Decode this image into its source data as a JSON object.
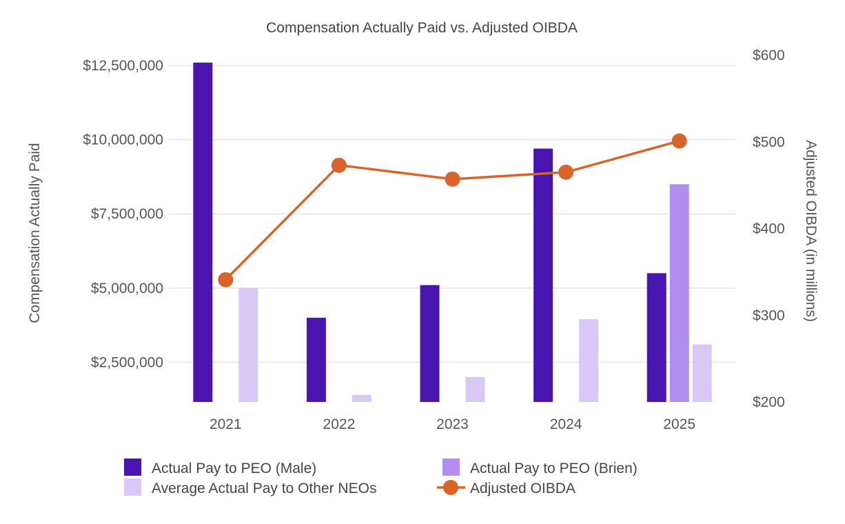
{
  "chart_data": {
    "type": "bar",
    "title": "Compensation Actually Paid vs. Adjusted OIBDA",
    "categories": [
      "2021",
      "2022",
      "2023",
      "2024",
      "2025"
    ],
    "ylabel": "Compensation Actually Paid",
    "y2label": "Adjusted OIBDA (in millions)",
    "ylim": [
      1160000,
      12850000
    ],
    "y2lim": [
      200,
      600
    ],
    "yticks": [
      "$2,500,000",
      "$5,000,000",
      "$7,500,000",
      "$10,000,000",
      "$12,500,000"
    ],
    "ytick_values": [
      2500000,
      5000000,
      7500000,
      10000000,
      12500000
    ],
    "y2ticks": [
      "$200",
      "$300",
      "$400",
      "$500",
      "$600"
    ],
    "y2tick_values": [
      200,
      300,
      400,
      500,
      600
    ],
    "grid": true,
    "legend_position": "bottom",
    "series": [
      {
        "name": "Actual Pay to PEO (Male)",
        "kind": "bar",
        "axis": "left",
        "color": "#4a14b0",
        "values": [
          12600000,
          4000000,
          5100000,
          9700000,
          5500000
        ]
      },
      {
        "name": "Actual Pay to PEO (Brien)",
        "kind": "bar",
        "axis": "left",
        "color": "#b18ef0",
        "values": [
          null,
          null,
          null,
          null,
          8500000
        ]
      },
      {
        "name": "Average Actual Pay to Other NEOs",
        "kind": "bar",
        "axis": "left",
        "color": "#d8c8f5",
        "values": [
          5000000,
          1400000,
          2000000,
          3950000,
          3100000
        ]
      },
      {
        "name": "Adjusted OIBDA",
        "kind": "line",
        "axis": "right",
        "color": "#d9642a",
        "values": [
          341,
          473,
          457,
          465,
          501
        ]
      }
    ]
  }
}
